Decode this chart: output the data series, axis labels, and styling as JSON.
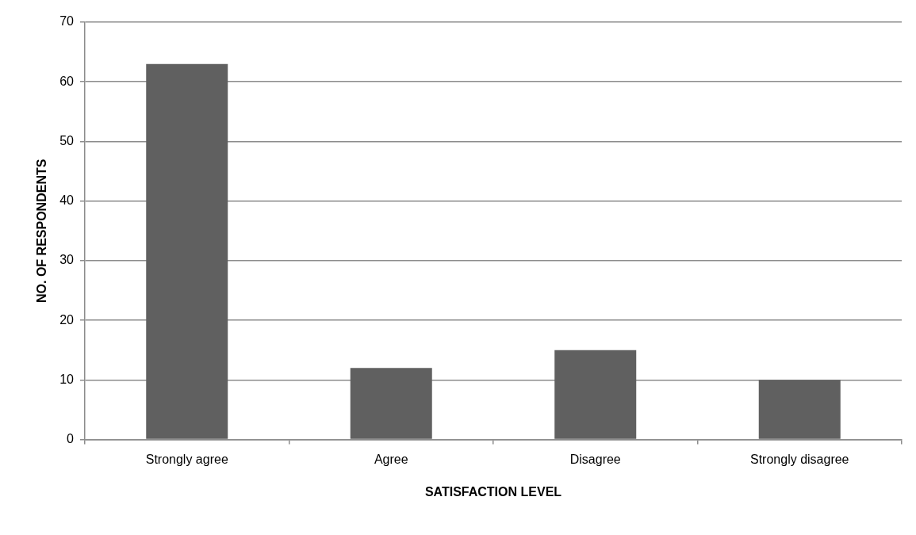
{
  "chart_data": {
    "type": "bar",
    "xlabel": "SATISFACTION LEVEL",
    "ylabel": "NO. OF RESPONDENTS",
    "categories": [
      "Strongly agree",
      "Agree",
      "Disagree",
      "Strongly disagree"
    ],
    "values": [
      63,
      12,
      15,
      10
    ],
    "color": "#606060",
    "ylim": [
      0,
      70
    ],
    "yticks": [
      0,
      10,
      20,
      30,
      40,
      50,
      60,
      70
    ],
    "grid": "y",
    "legend": false
  }
}
